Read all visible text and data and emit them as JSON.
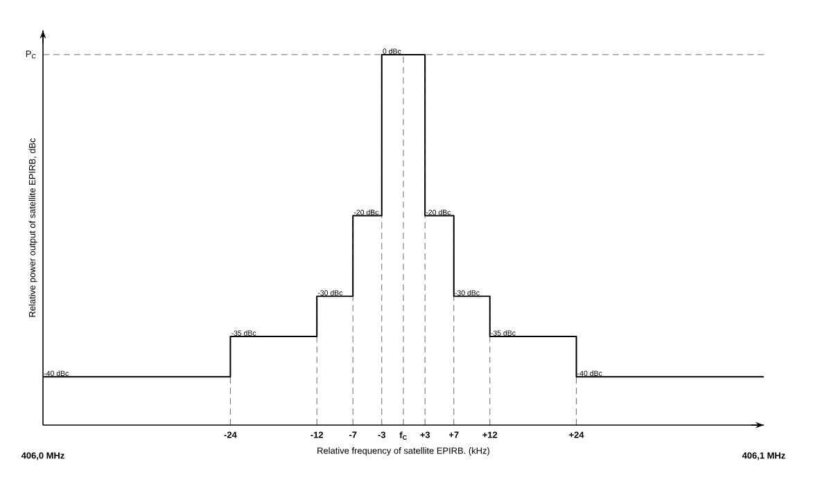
{
  "chart_data": {
    "type": "step",
    "xlabel": "Relative frequency of satellite EPIRB. (kHz)",
    "ylabel": "Relative  power output of satellite EPIRB, dBc",
    "x": [
      -50,
      -24,
      -12,
      -7,
      -3,
      3,
      7,
      12,
      24,
      50
    ],
    "values": [
      -40,
      -35,
      -30,
      -20,
      0,
      -20,
      -30,
      -35,
      -40,
      -40
    ],
    "value_labels": [
      "-40 dBc",
      "-35 dBc",
      "-30 dBc",
      "-20 dBc",
      "0 dBc",
      "-20 dBc",
      "-30 dBc",
      "-35 dBc",
      "-40 dBc",
      null
    ],
    "color": "#000000",
    "xlim": [
      -50,
      50
    ],
    "annotations": [
      "406,0 MHz",
      "406,1 MHz",
      "P$_{C}$"
    ],
    "xticks": [
      {
        "value": -24,
        "label": "-24"
      },
      {
        "value": -12,
        "label": "-12"
      },
      {
        "value": -7,
        "label": "-7"
      },
      {
        "value": -3,
        "label": "-3"
      },
      {
        "value": 0,
        "label": "f$_{C}$"
      },
      {
        "value": 3,
        "label": "+3"
      },
      {
        "value": 7,
        "label": "+7"
      },
      {
        "value": 12,
        "label": "+12"
      },
      {
        "value": 24,
        "label": "+24"
      }
    ],
    "ylim": [
      -46,
      3
    ],
    "ref_lines": [
      {
        "axis": "y",
        "value": 0,
        "line_style": "dashed"
      },
      {
        "axis": "x",
        "value": -24,
        "line_style": "dashed"
      },
      {
        "axis": "x",
        "value": -12,
        "line_style": "dashed"
      },
      {
        "axis": "x",
        "value": -7,
        "line_style": "dashed"
      },
      {
        "axis": "x",
        "value": -3,
        "line_style": "dashed"
      },
      {
        "axis": "x",
        "value": 0,
        "line_style": "dashed"
      },
      {
        "axis": "x",
        "value": 3,
        "line_style": "dashed"
      },
      {
        "axis": "x",
        "value": 7,
        "line_style": "dashed"
      },
      {
        "axis": "x",
        "value": 12,
        "line_style": "dashed"
      },
      {
        "axis": "x",
        "value": 24,
        "line_style": "dashed"
      }
    ]
  }
}
